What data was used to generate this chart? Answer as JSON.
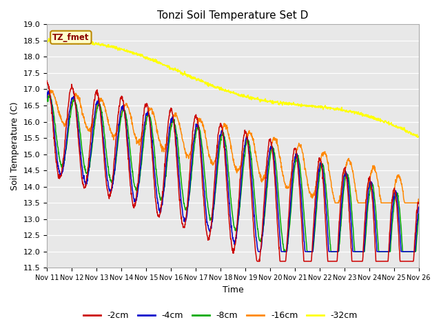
{
  "title": "Tonzi Soil Temperature Set D",
  "xlabel": "Time",
  "ylabel": "Soil Temperature (C)",
  "ylim": [
    11.5,
    19.0
  ],
  "yticks": [
    11.5,
    12.0,
    12.5,
    13.0,
    13.5,
    14.0,
    14.5,
    15.0,
    15.5,
    16.0,
    16.5,
    17.0,
    17.5,
    18.0,
    18.5,
    19.0
  ],
  "x_labels": [
    "Nov 11",
    "Nov 12",
    "Nov 13",
    "Nov 14",
    "Nov 15",
    "Nov 16",
    "Nov 17",
    "Nov 18",
    "Nov 19",
    "Nov 20",
    "Nov 21",
    "Nov 22",
    "Nov 23",
    "Nov 24",
    "Nov 25",
    "Nov 26"
  ],
  "colors": {
    "-2cm": "#cc0000",
    "-4cm": "#0000cc",
    "-8cm": "#00aa00",
    "-16cm": "#ff8800",
    "-32cm": "#ffff00"
  },
  "legend_label": "TZ_fmet",
  "n_points": 1440
}
